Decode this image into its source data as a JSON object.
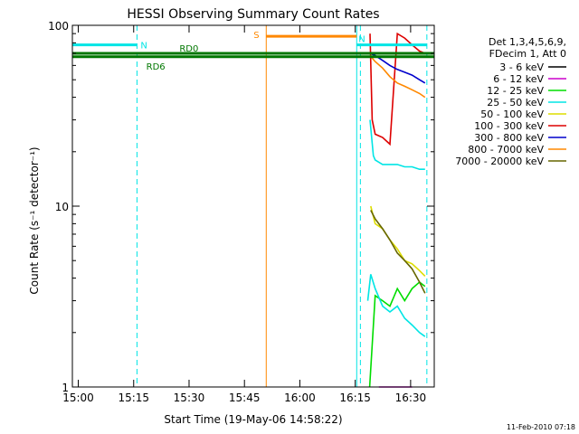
{
  "chart_data": {
    "type": "line",
    "title": "HESSI Observing Summary Count Rates",
    "xlabel": "Start Time (19-May-06 14:58:22)",
    "ylabel": "Count Rate (s⁻¹ detector⁻¹)",
    "x_unit": "minutes since start",
    "xlim": [
      0,
      98
    ],
    "ylim": [
      1,
      100
    ],
    "y_scale": "log",
    "grid": false,
    "legend_placement": "right",
    "x_ticks": [
      {
        "label": "15:00",
        "value": 1.6
      },
      {
        "label": "15:15",
        "value": 16.6
      },
      {
        "label": "15:30",
        "value": 31.6
      },
      {
        "label": "15:45",
        "value": 46.6
      },
      {
        "label": "16:00",
        "value": 61.6
      },
      {
        "label": "16:15",
        "value": 76.6
      },
      {
        "label": "16:30",
        "value": 91.6
      }
    ],
    "y_ticks": [
      {
        "label": "1",
        "value": 1
      },
      {
        "label": "10",
        "value": 10
      },
      {
        "label": "100",
        "value": 100
      }
    ],
    "legend_header": [
      "Det 1,3,4,5,6,9,",
      "FDecim 1, Att 0"
    ],
    "series": [
      {
        "name": "3 - 6 keV",
        "color": "#000000",
        "x": [],
        "y": []
      },
      {
        "name": "6 - 12 keV",
        "color": "#cc00cc",
        "x": [
          83,
          88,
          92
        ],
        "y": [
          1,
          1,
          1
        ]
      },
      {
        "name": "12 - 25 keV",
        "color": "#00dd00",
        "x": [
          80.5,
          82,
          84,
          86,
          88,
          90,
          92,
          94,
          95.5
        ],
        "y": [
          1,
          3.2,
          3.0,
          2.8,
          3.5,
          3.0,
          3.5,
          3.8,
          3.6
        ]
      },
      {
        "name": "25 - 50 keV",
        "color": "#00e5e5",
        "x": [
          80,
          80.8,
          82,
          84,
          86,
          88,
          90,
          92,
          94,
          95.5
        ],
        "y": [
          3.0,
          4.2,
          3.5,
          2.8,
          2.6,
          2.8,
          2.4,
          2.2,
          2.0,
          1.9
        ]
      },
      {
        "name": "50 - 100 keV",
        "color": "#dddd00",
        "x": [
          80.8,
          82,
          84,
          86,
          88,
          90,
          92,
          94,
          95.5
        ],
        "y": [
          10,
          8.0,
          7.5,
          6.5,
          5.8,
          5.0,
          4.8,
          4.4,
          4.1
        ]
      },
      {
        "name": "100 - 300 keV",
        "color": "#dd0000",
        "x": [
          80.6,
          81.2,
          82,
          84,
          86,
          88,
          90,
          92,
          94,
          95.5
        ],
        "y": [
          90,
          30,
          25,
          24,
          22,
          90,
          85,
          78,
          72,
          70
        ]
      },
      {
        "name": "300 - 800 keV",
        "color": "#0000cc",
        "x": [
          80.6,
          82,
          84,
          86,
          88,
          90,
          92,
          94,
          95.5
        ],
        "y": [
          70,
          68,
          64,
          60,
          57,
          55,
          53,
          50,
          48
        ]
      },
      {
        "name": "800 - 7000 keV",
        "color": "#ff8800",
        "x": [
          80.6,
          82,
          84,
          86,
          88,
          90,
          92,
          94,
          95.5
        ],
        "y": [
          68,
          63,
          58,
          52,
          48,
          46,
          44,
          42,
          40
        ]
      },
      {
        "name": "7000 - 20000 keV",
        "color": "#666600",
        "x": [
          80.8,
          82,
          84,
          86,
          88,
          90,
          92,
          94,
          95.5
        ],
        "y": [
          9.5,
          8.5,
          7.5,
          6.5,
          5.5,
          5.0,
          4.5,
          3.8,
          3.3
        ]
      }
    ],
    "extra_cyan_series": {
      "color": "#00e5e5",
      "x": [
        80.6,
        81.5,
        82,
        84,
        86,
        88,
        90,
        92,
        94,
        95.5
      ],
      "y": [
        30,
        19,
        18,
        17,
        17,
        17,
        16.5,
        16.5,
        16,
        16
      ]
    },
    "annotations": [
      {
        "label": "N",
        "color": "#00e5e5",
        "x_start": 0,
        "x_end": 17.5,
        "y": 78
      },
      {
        "label": "N",
        "color": "#00e5e5",
        "x_start": 77,
        "x_end": 96,
        "y": 78
      },
      {
        "label": "S",
        "color": "#ff8800",
        "x_start": 52.5,
        "x_end": 77,
        "y": 87
      },
      {
        "label": "RD0",
        "color": "#007700",
        "x_start": 0,
        "x_end": 98,
        "y": 70
      },
      {
        "label": "RD6",
        "color": "#007700",
        "x_start": 0,
        "x_end": 98,
        "y": 67
      }
    ],
    "vertical_lines": [
      {
        "x": 52.5,
        "color": "#ff8800",
        "style": "solid"
      },
      {
        "x": 17.5,
        "color": "#00e5e5",
        "style": "dashed"
      },
      {
        "x": 77,
        "color": "#00e5e5",
        "style": "solid"
      },
      {
        "x": 78,
        "color": "#00e5e5",
        "style": "dashed"
      },
      {
        "x": 96,
        "color": "#00e5e5",
        "style": "dashed"
      }
    ]
  },
  "footer": {
    "date_stamp": "11-Feb-2010 07:18"
  }
}
